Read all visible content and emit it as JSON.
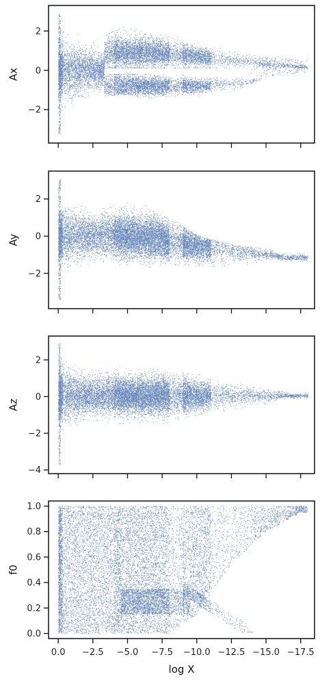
{
  "chart_data": {
    "type": "scatter",
    "layout": "4 vertically stacked panels with a shared x-axis (tick labels only on the bottom panel)",
    "x_axis": {
      "label": "log X",
      "inverted": true,
      "range": [
        0.7,
        -18.5
      ],
      "ticks": [
        0.0,
        -2.5,
        -5.0,
        -7.5,
        -10.0,
        -12.5,
        -15.0,
        -17.5
      ],
      "tick_labels": [
        "0.0",
        "−2.5",
        "−5.0",
        "−7.5",
        "−10.0",
        "−12.5",
        "−15.0",
        "−17.5"
      ]
    },
    "marker": {
      "color": "#4c72b0",
      "style": "pixel"
    },
    "grid": false,
    "legend": "none",
    "panels": [
      {
        "ylabel": "Ax",
        "ylim": [
          -3.7,
          3.3
        ],
        "yticks": [
          -2,
          0,
          2
        ],
        "ytick_labels": [
          "−2",
          "0",
          "2"
        ],
        "description": "Dense cloud spread within about ±2 near x=0 that narrows around x≈-3.5, then splits into two branches: upper near +0.3 to +1.5 and lower near -0.4 to -1.2, both converging toward zero by x≈-17.5",
        "approx_envelope": [
          {
            "x": 0.0,
            "upper": 2.2,
            "lower": -2.0
          },
          {
            "x": -2.5,
            "upper": 1.2,
            "lower": -1.0
          },
          {
            "x": -5.0,
            "upper": 2.0,
            "lower": -0.9
          },
          {
            "x": -7.5,
            "upper": 1.6,
            "lower": -1.3
          },
          {
            "x": -10.0,
            "upper": 1.2,
            "lower": -1.0
          },
          {
            "x": -12.5,
            "upper": 0.6,
            "lower": -0.8
          },
          {
            "x": -15.0,
            "upper": 0.3,
            "lower": 0.0
          },
          {
            "x": -17.5,
            "upper": 0.2,
            "lower": 0.2
          }
        ]
      },
      {
        "ylabel": "Ay",
        "ylim": [
          -3.9,
          3.5
        ],
        "yticks": [
          -2,
          0,
          2
        ],
        "ytick_labels": [
          "−2",
          "0",
          "2"
        ],
        "description": "Cloud centred near 0 for x between 0 and -6, broad bulge up to about +1.8 around x≈-5 to -7, then drifts down to about -1 and tapers toward x≈-17.5",
        "approx_envelope": [
          {
            "x": 0.0,
            "upper": 2.2,
            "lower": -2.0
          },
          {
            "x": -2.5,
            "upper": 1.0,
            "lower": -1.3
          },
          {
            "x": -5.0,
            "upper": 1.7,
            "lower": -1.6
          },
          {
            "x": -7.5,
            "upper": 1.0,
            "lower": -1.3
          },
          {
            "x": -10.0,
            "upper": -0.3,
            "lower": -1.3
          },
          {
            "x": -12.5,
            "upper": -0.8,
            "lower": -1.3
          },
          {
            "x": -15.0,
            "upper": -1.0,
            "lower": -1.3
          },
          {
            "x": -17.5,
            "upper": -1.2,
            "lower": -1.3
          }
        ]
      },
      {
        "ylabel": "Az",
        "ylim": [
          -4.2,
          3.3
        ],
        "yticks": [
          -4,
          -2,
          0,
          2
        ],
        "ytick_labels": [
          "−4",
          "−2",
          "0",
          "2"
        ],
        "description": "Cloud centred near 0 spread about ±1.5, widest near x=0 and x≈-7, tapering toward zero by x≈-17",
        "approx_envelope": [
          {
            "x": 0.0,
            "upper": 2.3,
            "lower": -2.3
          },
          {
            "x": -2.5,
            "upper": 1.2,
            "lower": -1.2
          },
          {
            "x": -5.0,
            "upper": 1.3,
            "lower": -1.4
          },
          {
            "x": -7.5,
            "upper": 1.2,
            "lower": -1.3
          },
          {
            "x": -10.0,
            "upper": 0.9,
            "lower": -1.0
          },
          {
            "x": -12.5,
            "upper": 0.5,
            "lower": -0.5
          },
          {
            "x": -15.0,
            "upper": 0.2,
            "lower": -0.1
          },
          {
            "x": -17.5,
            "upper": 0.1,
            "lower": -0.1
          }
        ]
      },
      {
        "ylabel": "f0",
        "ylim": [
          -0.04,
          1.04
        ],
        "yticks": [
          0.0,
          0.2,
          0.4,
          0.6,
          0.8,
          1.0
        ],
        "ytick_labels": [
          "0.0",
          "0.2",
          "0.4",
          "0.6",
          "0.8",
          "1.0"
        ],
        "description": "Points fill 0 to 1 uniformly for x between 0 and about -8, dense cluster near 0.15 to 0.35 around x≈-5 to -9; for x beyond -10 the filled region forms a wedge converging toward 1.0 at x≈-17.5, with a lower branch ending near 0 at x≈-13.5",
        "approx_envelope": [
          {
            "x": 0.0,
            "upper": 1.0,
            "lower": 0.0
          },
          {
            "x": -5.0,
            "upper": 1.0,
            "lower": 0.0
          },
          {
            "x": -8.0,
            "upper": 1.0,
            "lower": 0.0
          },
          {
            "x": -10.0,
            "upper": 1.0,
            "lower": 0.15
          },
          {
            "x": -12.5,
            "upper": 1.0,
            "lower": 0.55
          },
          {
            "x": -15.0,
            "upper": 1.0,
            "lower": 0.8
          },
          {
            "x": -17.5,
            "upper": 1.0,
            "lower": 0.95
          }
        ]
      }
    ]
  }
}
